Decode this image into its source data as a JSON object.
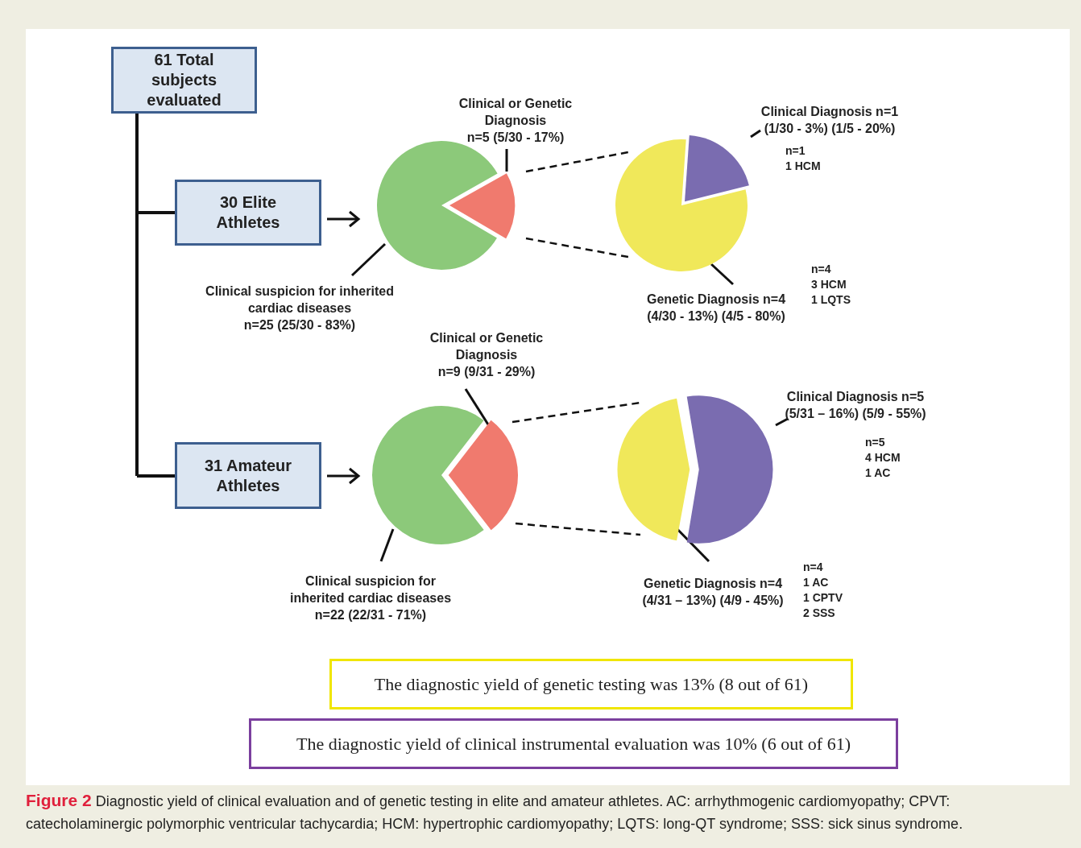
{
  "chart_data": [
    {
      "type": "pie",
      "categories": [
        "Clinical suspicion for inherited\ncardiac diseases\nn=25 (25/30 - 83%)",
        "Clinical or Genetic\nDiagnosis\nn=5 (5/30 - 17%)"
      ],
      "values": [
        25,
        5
      ],
      "colors": [
        "#8cc97a",
        "#f07a6e"
      ]
    },
    {
      "type": "pie",
      "categories": [
        "Clinical Diagnosis n=1\n(1/30 - 3%) (1/5 - 20%)",
        "Genetic Diagnosis n=4\n(4/30 - 13%) (4/5 - 80%)"
      ],
      "values": [
        1,
        4
      ],
      "colors": [
        "#7a6cb0",
        "#f0e85a"
      ],
      "annotations": [
        "n=1\n1 HCM",
        "n=4\n3 HCM\n1 LQTS"
      ]
    },
    {
      "type": "pie",
      "categories": [
        "Clinical suspicion for\ninherited cardiac diseases\nn=22 (22/31 - 71%)",
        "Clinical or Genetic\nDiagnosis\nn=9 (9/31 - 29%)"
      ],
      "values": [
        22,
        9
      ],
      "colors": [
        "#8cc97a",
        "#f07a6e"
      ]
    },
    {
      "type": "pie",
      "categories": [
        "Clinical Diagnosis n=5\n(5/31 – 16%) (5/9 - 55%)",
        "Genetic Diagnosis n=4\n(4/31 – 13%) (4/9 - 45%)"
      ],
      "values": [
        5,
        4
      ],
      "colors": [
        "#7a6cb0",
        "#f0e85a"
      ],
      "annotations": [
        "n=5\n4 HCM\n1 AC",
        "n=4\n1 AC\n1 CPTV\n2 SSS"
      ]
    },
    {
      "type": "other",
      "annotations": [
        "61 Total subjects evaluated",
        "30 Elite Athletes",
        "31 Amateur Athletes",
        "The diagnostic yield of genetic testing was 13% (8 out of 61)",
        "The diagnostic yield of clinical instrumental evaluation was 10% (6 out of 61)",
        "Figure 2",
        "Diagnostic yield of clinical evaluation and of genetic testing in elite and amateur athletes. AC: arrhythmogenic cardiomyopathy; CPVT: catecholaminergic polymorphic ventricular tachycardia; HCM: hypertrophic cardiomyopathy; LQTS: long-QT syndrome; SSS: sick sinus syndrome."
      ]
    }
  ]
}
